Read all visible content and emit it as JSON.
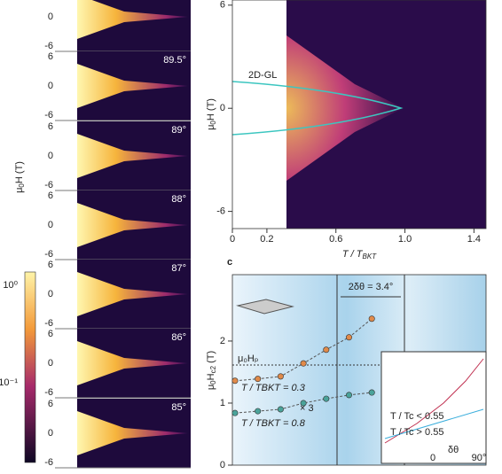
{
  "panel_a": {
    "ylabel": {
      "main": "μ",
      "sub": "0",
      "rest": "H (T)"
    },
    "angles": [
      "89.5°",
      "89°",
      "88°",
      "87°",
      "86°",
      "85°"
    ],
    "ticks": [
      "6",
      "0",
      "-6"
    ],
    "colorbar": [
      "10⁰",
      "10⁻¹"
    ]
  },
  "chart_data": [
    {
      "type": "heatmap",
      "ylabel": {
        "main": "μ",
        "sub": "0",
        "rest": "H (T)"
      },
      "xlabel": {
        "main": "T / T",
        "sub": "BKT"
      },
      "annotation": "2D-GL",
      "xlim": [
        0,
        1.47
      ],
      "ylim": [
        -7,
        6.3
      ],
      "xticks": [
        0,
        0.2,
        0.6,
        {
          "value": 1,
          "label": "1.0"
        },
        1.4
      ],
      "yticks": [
        -6,
        0,
        6
      ]
    },
    {
      "type": "scatter",
      "panel_label": "c",
      "ylabel": {
        "main": "μ",
        "sub": "0",
        "rest": "H",
        "sub2": "c2",
        "unit": " (T)"
      },
      "categories": [
        null,
        null,
        null,
        null,
        null,
        null,
        null
      ],
      "series": [
        {
          "name": "T / TBKT = 0.3",
          "color": "#e08a4a",
          "values": [
            1.36,
            1.39,
            1.43,
            1.64,
            1.86,
            2.06,
            2.36
          ]
        },
        {
          "name": "T / TBKT = 0.8",
          "color": "#4aa39a",
          "values": [
            0.84,
            0.87,
            0.9,
            1.0,
            1.07,
            1.13,
            1.17
          ]
        }
      ],
      "ylim": [
        0,
        3.07
      ],
      "yticks": [
        0,
        1,
        2
      ],
      "annotations": [
        "2δθ = 3.4°",
        "μ₀Hₚ",
        "× 3"
      ],
      "inset": {
        "labels": [
          "T / Tc < 0.55",
          "T / Tc > 0.55",
          "δθ",
          "0",
          "90°"
        ]
      }
    }
  ]
}
